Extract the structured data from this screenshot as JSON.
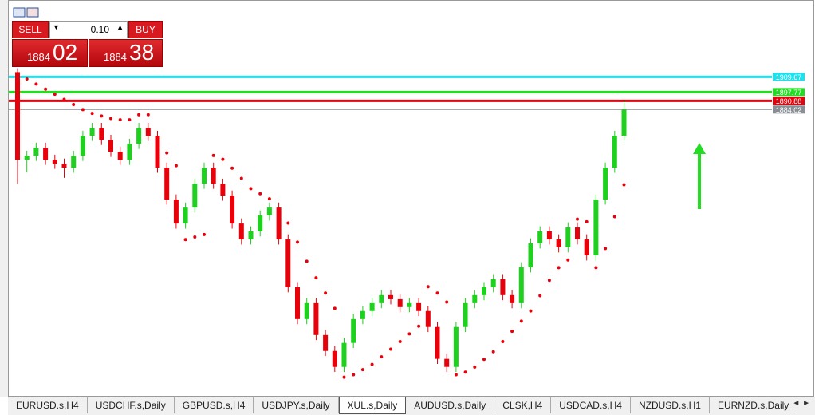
{
  "trade_panel": {
    "sell": "SELL",
    "buy": "BUY",
    "lot": "0.10",
    "bid_prefix": "1884",
    "bid_main": "02",
    "ask_prefix": "1884",
    "ask_main": "38"
  },
  "chart_data": {
    "type": "candlestick",
    "ylim": [
      1660,
      1965
    ],
    "up_color": "#1ed11e",
    "down_color": "#e8000b",
    "sar_color": "#e8000b",
    "ohlc": [
      [
        1913.4,
        1916.5,
        1825.8,
        1844.6
      ],
      [
        1844.6,
        1851.7,
        1834.6,
        1847.7
      ],
      [
        1847.7,
        1858.0,
        1843.7,
        1854.0
      ],
      [
        1854.0,
        1858.0,
        1840.6,
        1844.6
      ],
      [
        1844.6,
        1848.6,
        1837.5,
        1841.5
      ],
      [
        1841.5,
        1845.5,
        1830.4,
        1838.4
      ],
      [
        1838.4,
        1851.7,
        1834.4,
        1847.7
      ],
      [
        1847.7,
        1867.4,
        1843.7,
        1863.4
      ],
      [
        1863.4,
        1873.6,
        1859.4,
        1869.6
      ],
      [
        1869.6,
        1873.6,
        1856.2,
        1860.2
      ],
      [
        1860.2,
        1864.2,
        1846.9,
        1850.9
      ],
      [
        1850.9,
        1854.9,
        1840.6,
        1844.6
      ],
      [
        1844.6,
        1861.1,
        1840.6,
        1857.1
      ],
      [
        1857.1,
        1873.6,
        1853.1,
        1869.6
      ],
      [
        1869.6,
        1873.6,
        1859.4,
        1863.4
      ],
      [
        1863.4,
        1867.4,
        1834.4,
        1838.4
      ],
      [
        1838.4,
        1842.4,
        1809.4,
        1813.4
      ],
      [
        1813.4,
        1817.4,
        1790.6,
        1794.6
      ],
      [
        1794.6,
        1811.1,
        1790.6,
        1807.1
      ],
      [
        1807.1,
        1829.8,
        1803.1,
        1825.8
      ],
      [
        1825.8,
        1842.4,
        1821.8,
        1838.4
      ],
      [
        1838.4,
        1842.4,
        1821.8,
        1825.8
      ],
      [
        1825.8,
        1829.8,
        1812.5,
        1816.5
      ],
      [
        1816.5,
        1820.5,
        1790.6,
        1794.6
      ],
      [
        1794.6,
        1798.6,
        1778.1,
        1782.1
      ],
      [
        1782.1,
        1792.4,
        1778.1,
        1788.4
      ],
      [
        1788.4,
        1804.9,
        1784.4,
        1800.9
      ],
      [
        1800.9,
        1811.1,
        1796.9,
        1807.1
      ],
      [
        1807.1,
        1811.1,
        1778.1,
        1782.1
      ],
      [
        1782.1,
        1786.1,
        1740.6,
        1744.6
      ],
      [
        1744.6,
        1748.6,
        1715.6,
        1719.6
      ],
      [
        1719.6,
        1736.1,
        1715.6,
        1732.1
      ],
      [
        1732.1,
        1736.1,
        1703.1,
        1707.1
      ],
      [
        1707.1,
        1711.1,
        1690.6,
        1694.6
      ],
      [
        1694.6,
        1698.6,
        1678.1,
        1682.1
      ],
      [
        1682.1,
        1704.9,
        1678.1,
        1700.9
      ],
      [
        1700.9,
        1723.6,
        1696.9,
        1719.6
      ],
      [
        1719.6,
        1729.9,
        1715.6,
        1725.9
      ],
      [
        1725.9,
        1736.1,
        1721.9,
        1732.1
      ],
      [
        1732.1,
        1742.4,
        1728.1,
        1738.4
      ],
      [
        1738.4,
        1742.4,
        1731.2,
        1735.2
      ],
      [
        1735.2,
        1739.2,
        1725.0,
        1729.0
      ],
      [
        1729.0,
        1736.1,
        1725.0,
        1732.1
      ],
      [
        1732.1,
        1736.1,
        1721.9,
        1725.9
      ],
      [
        1725.9,
        1729.9,
        1709.4,
        1713.4
      ],
      [
        1713.4,
        1717.4,
        1684.4,
        1688.4
      ],
      [
        1688.4,
        1692.4,
        1678.1,
        1682.1
      ],
      [
        1682.1,
        1717.4,
        1678.1,
        1713.4
      ],
      [
        1713.4,
        1736.1,
        1709.4,
        1732.1
      ],
      [
        1732.1,
        1742.4,
        1728.1,
        1738.4
      ],
      [
        1738.4,
        1748.6,
        1734.4,
        1744.6
      ],
      [
        1744.6,
        1754.9,
        1740.6,
        1750.9
      ],
      [
        1750.9,
        1754.9,
        1734.4,
        1738.4
      ],
      [
        1738.4,
        1742.4,
        1728.1,
        1732.1
      ],
      [
        1732.1,
        1764.2,
        1728.1,
        1760.2
      ],
      [
        1760.2,
        1783.0,
        1756.2,
        1779.0
      ],
      [
        1779.0,
        1792.4,
        1775.0,
        1788.4
      ],
      [
        1788.4,
        1792.4,
        1778.1,
        1782.1
      ],
      [
        1782.1,
        1786.1,
        1771.9,
        1775.9
      ],
      [
        1775.9,
        1795.5,
        1771.9,
        1791.5
      ],
      [
        1791.5,
        1795.5,
        1778.1,
        1782.1
      ],
      [
        1782.1,
        1786.1,
        1765.6,
        1769.6
      ],
      [
        1769.6,
        1817.4,
        1765.6,
        1813.4
      ],
      [
        1813.4,
        1842.4,
        1809.4,
        1838.4
      ],
      [
        1838.4,
        1867.4,
        1834.4,
        1863.4
      ],
      [
        1863.4,
        1890.9,
        1859.4,
        1884.0
      ]
    ],
    "sar": [
      1912,
      1908,
      1904,
      1900,
      1896,
      1892,
      1888,
      1884,
      1881,
      1879,
      1877,
      1876,
      1876,
      1880,
      1880,
      1855,
      1850,
      1840,
      1782,
      1784,
      1786,
      1848,
      1845,
      1838,
      1830,
      1822,
      1818,
      1814,
      1806,
      1795,
      1780,
      1765,
      1752,
      1740,
      1728,
      1674,
      1676,
      1680,
      1684,
      1690,
      1696,
      1702,
      1708,
      1714,
      1745,
      1740,
      1733,
      1676,
      1678,
      1682,
      1688,
      1694,
      1702,
      1710,
      1718,
      1726,
      1738,
      1750,
      1760,
      1766,
      1798,
      1796,
      1760,
      1775,
      1800,
      1825
    ],
    "levels": [
      {
        "value": 1909.67,
        "color": "#19e3f0"
      },
      {
        "value": 1897.77,
        "color": "#22dd22"
      },
      {
        "value": 1890.88,
        "color": "#e8000b"
      },
      {
        "value": 1884.02,
        "color": "#8a8f96"
      }
    ]
  },
  "tabs": [
    "EURUSD.s,H4",
    "USDCHF.s,Daily",
    "GBPUSD.s,H4",
    "USDJPY.s,Daily",
    "XUL.s,Daily",
    "AUDUSD.s,Daily",
    "CLSK,H4",
    "USDCAD.s,H4",
    "NZDUSD.s,H1",
    "EURNZD.s,Daily"
  ],
  "active_tab": 4
}
